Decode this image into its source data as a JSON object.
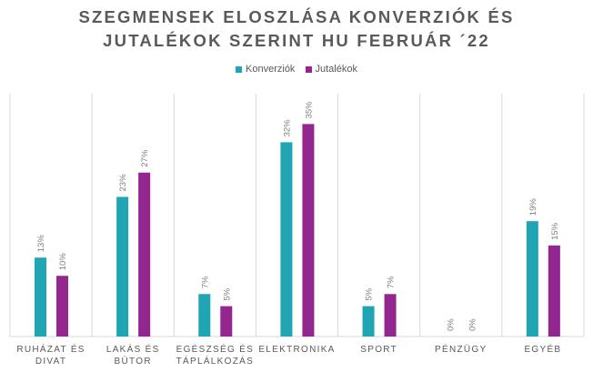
{
  "chart_data": {
    "type": "bar",
    "title": "SZEGMENSEK ELOSZLÁSA KONVERZIÓK ÉS JUTALÉKOK SZERINT HU FEBRUÁR ´22",
    "title_lines": [
      "SZEGMENSEK ELOSZLÁSA KONVERZIÓK ÉS",
      "JUTALÉKOK SZERINT HU FEBRUÁR ´22"
    ],
    "categories": [
      [
        "RUHÁZAT ÉS",
        "DIVAT"
      ],
      [
        "LAKÁS ÉS",
        "BÚTOR"
      ],
      [
        "EGÉSZSÉG ÉS",
        "TÁPLÁLKOZÁS"
      ],
      [
        "ELEKTRONIKA"
      ],
      [
        "SPORT"
      ],
      [
        "PÉNZÜGY"
      ],
      [
        "EGYÉB"
      ]
    ],
    "series": [
      {
        "name": "Konverziók",
        "color": "#1FA5B3",
        "values": [
          13,
          23,
          7,
          32,
          5,
          0,
          19
        ],
        "labels": [
          "13%",
          "23%",
          "7%",
          "32%",
          "5%",
          "0%",
          "19%"
        ]
      },
      {
        "name": "Jutalékok",
        "color": "#93268F",
        "values": [
          10,
          27,
          5,
          35,
          7,
          0,
          15
        ],
        "labels": [
          "10%",
          "27%",
          "5%",
          "35%",
          "7%",
          "0%",
          "15%"
        ]
      }
    ],
    "ylim": [
      0,
      40
    ],
    "legend": "top",
    "grid": false,
    "xlabel": "",
    "ylabel": ""
  }
}
